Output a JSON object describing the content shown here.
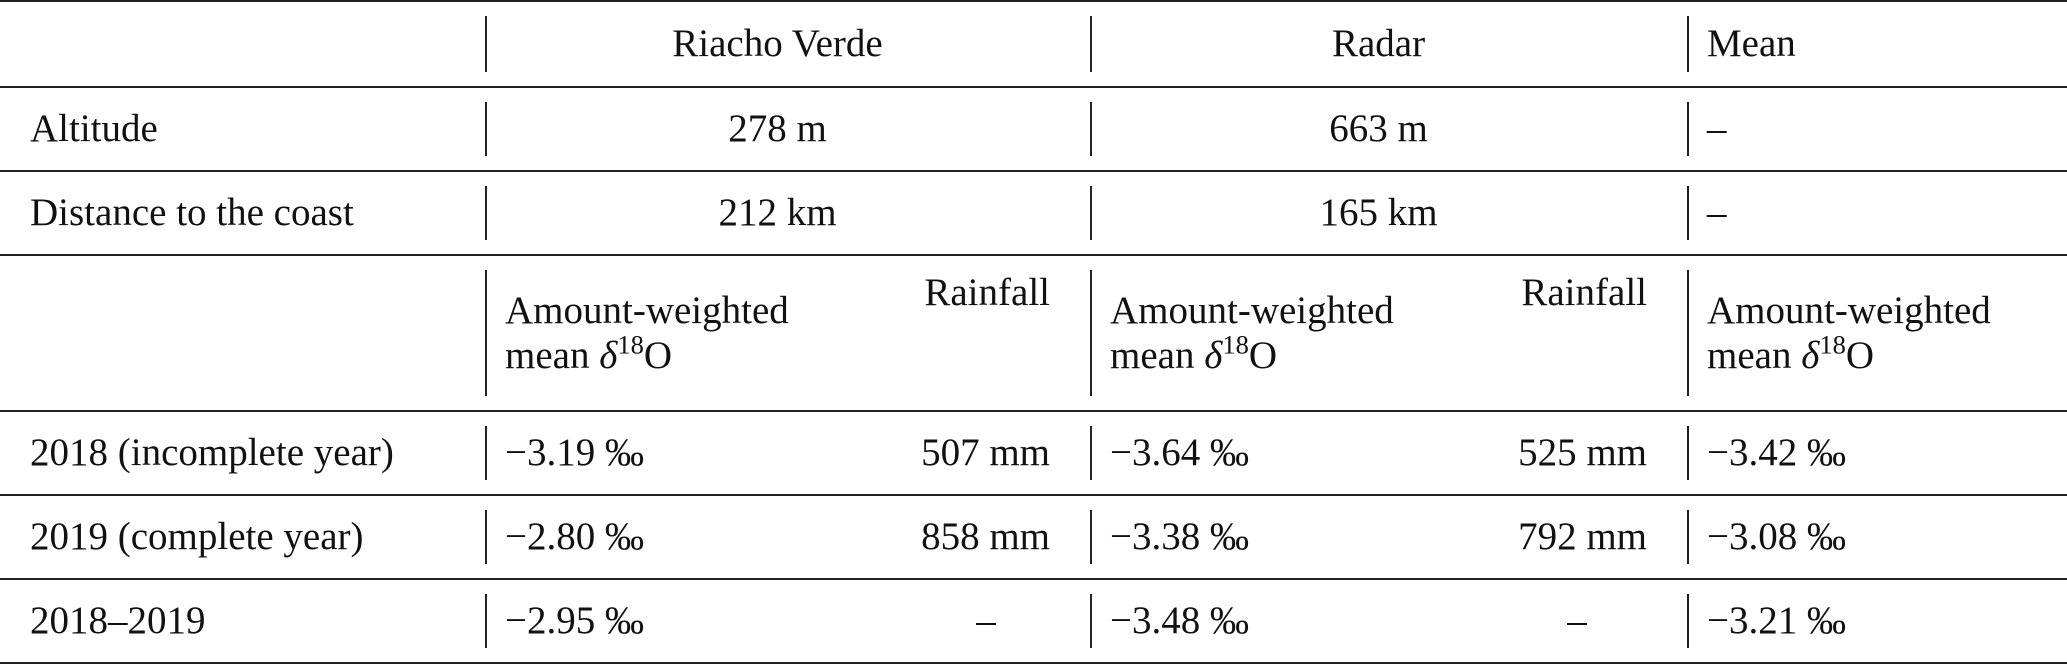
{
  "header": {
    "col1": "Riacho Verde",
    "col2": "Radar",
    "col3": "Mean"
  },
  "rows": {
    "altitude": {
      "label": "Altitude",
      "riacho": "278 m",
      "radar": "663 m",
      "mean": "–"
    },
    "distance": {
      "label": "Distance to the coast",
      "riacho": "212 km",
      "radar": "165 km",
      "mean": "–"
    }
  },
  "subheader": {
    "awm_line1": "Amount-weighted",
    "awm_mean": "mean ",
    "awm_delta": "δ",
    "awm_sup": "18",
    "awm_o": "O",
    "rainfall": "Rainfall"
  },
  "years": [
    {
      "label": "2018 (incomplete year)",
      "riacho_d18o": "−3.19 ‰",
      "riacho_rain": "507 mm",
      "radar_d18o": "−3.64 ‰",
      "radar_rain": "525 mm",
      "mean_d18o": "−3.42 ‰"
    },
    {
      "label": "2019 (complete year)",
      "riacho_d18o": "−2.80 ‰",
      "riacho_rain": "858 mm",
      "radar_d18o": "−3.38 ‰",
      "radar_rain": "792 mm",
      "mean_d18o": "−3.08 ‰"
    },
    {
      "label": "2018–2019",
      "riacho_d18o": "−2.95 ‰",
      "riacho_rain": "–",
      "radar_d18o": "−3.48 ‰",
      "radar_rain": "–",
      "mean_d18o": "−3.21 ‰"
    }
  ]
}
